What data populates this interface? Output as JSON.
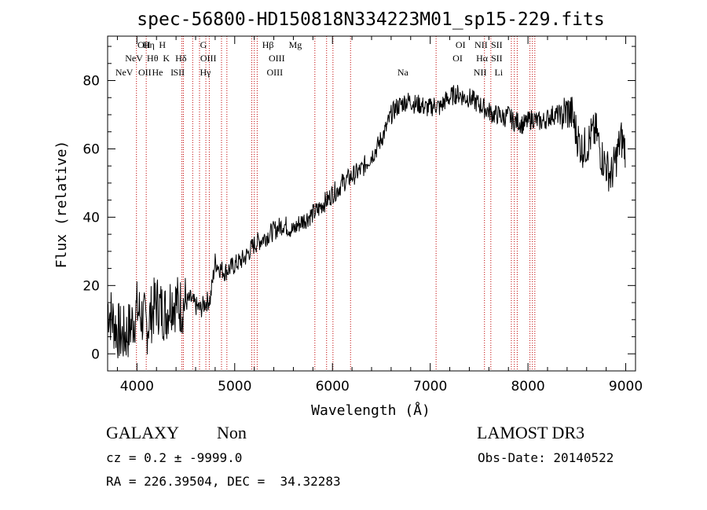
{
  "chart_data": {
    "type": "line",
    "title": "spec-56800-HD150818N334223M01_sp15-229.fits",
    "xlabel": "Wavelength (Å)",
    "ylabel": "Flux (relative)",
    "xlim": [
      3700,
      9100
    ],
    "ylim": [
      -5,
      93
    ],
    "x_ticks": [
      4000,
      5000,
      6000,
      7000,
      8000,
      9000
    ],
    "y_ticks": [
      0,
      20,
      40,
      60,
      80
    ],
    "grid": false,
    "series": [
      {
        "name": "spectrum",
        "x": [
          3700,
          3750,
          3800,
          3850,
          3900,
          3950,
          4000,
          4050,
          4100,
          4150,
          4200,
          4250,
          4300,
          4350,
          4400,
          4450,
          4500,
          4550,
          4600,
          4650,
          4700,
          4750,
          4800,
          4850,
          4900,
          4950,
          5000,
          5050,
          5100,
          5150,
          5200,
          5250,
          5300,
          5350,
          5400,
          5450,
          5500,
          5550,
          5600,
          5650,
          5700,
          5750,
          5800,
          5850,
          5900,
          5950,
          6000,
          6050,
          6100,
          6150,
          6200,
          6250,
          6300,
          6350,
          6400,
          6450,
          6500,
          6550,
          6600,
          6650,
          6700,
          6750,
          6800,
          6850,
          6900,
          6950,
          7000,
          7050,
          7100,
          7150,
          7200,
          7250,
          7300,
          7350,
          7400,
          7450,
          7500,
          7550,
          7600,
          7650,
          7700,
          7750,
          7800,
          7850,
          7900,
          7950,
          8000,
          8050,
          8100,
          8150,
          8200,
          8250,
          8300,
          8350,
          8400,
          8450,
          8500,
          8550,
          8600,
          8650,
          8700,
          8750,
          8800,
          8850,
          8900,
          8950,
          9000
        ],
        "values": [
          14,
          10,
          7,
          5,
          6,
          9,
          13,
          11,
          8,
          12,
          15,
          13,
          12,
          16,
          15,
          14,
          15,
          16,
          14,
          13,
          15,
          16,
          27,
          25,
          24,
          25,
          26,
          27,
          28,
          30,
          32,
          33,
          34,
          35,
          36,
          37,
          38,
          37,
          36,
          38,
          39,
          40,
          41,
          42,
          44,
          45,
          47,
          48,
          50,
          51,
          52,
          53,
          54,
          56,
          58,
          60,
          63,
          66,
          70,
          72,
          73,
          74,
          74,
          73,
          73,
          72,
          72,
          73,
          72,
          74,
          75,
          76,
          76,
          75,
          75,
          74,
          73,
          72,
          71,
          70,
          70,
          69,
          70,
          68,
          68,
          67,
          68,
          69,
          68,
          68,
          69,
          70,
          70,
          70,
          71,
          70,
          64,
          60,
          61,
          64,
          65,
          58,
          55,
          52,
          57,
          63,
          60
        ]
      }
    ],
    "spectral_lines": [
      {
        "label": "NeV",
        "wavelength": 3870,
        "row": 3
      },
      {
        "label": "NeV",
        "wavelength": 3970,
        "row": 2
      },
      {
        "label": "OII",
        "wavelength": 4072,
        "row": 1
      },
      {
        "label": "OII",
        "wavelength": 4080,
        "row": 3
      },
      {
        "label": "Hη",
        "wavelength": 4120,
        "row": 1
      },
      {
        "label": "Hθ",
        "wavelength": 4160,
        "row": 2
      },
      {
        "label": "He",
        "wavelength": 4210,
        "row": 3
      },
      {
        "label": "H",
        "wavelength": 4260,
        "row": 1
      },
      {
        "label": "K",
        "wavelength": 4300,
        "row": 2
      },
      {
        "label": "I",
        "wavelength": 4360,
        "row": 3
      },
      {
        "label": "Hδ",
        "wavelength": 4450,
        "row": 2
      },
      {
        "label": "SII",
        "wavelength": 4430,
        "row": 3
      },
      {
        "label": "G",
        "wavelength": 4680,
        "row": 1
      },
      {
        "label": "OIII",
        "wavelength": 4730,
        "row": 2
      },
      {
        "label": "Hγ",
        "wavelength": 4700,
        "row": 3
      },
      {
        "label": "Hβ",
        "wavelength": 5340,
        "row": 1
      },
      {
        "label": "OIII",
        "wavelength": 5430,
        "row": 2
      },
      {
        "label": "OIII",
        "wavelength": 5410,
        "row": 3
      },
      {
        "label": "Mg",
        "wavelength": 5620,
        "row": 1
      },
      {
        "label": "Na",
        "wavelength": 6720,
        "row": 3
      },
      {
        "label": "OI",
        "wavelength": 7310,
        "row": 1
      },
      {
        "label": "OI",
        "wavelength": 7280,
        "row": 2
      },
      {
        "label": "NII",
        "wavelength": 7520,
        "row": 1
      },
      {
        "label": "Hα",
        "wavelength": 7530,
        "row": 2
      },
      {
        "label": "NII",
        "wavelength": 7510,
        "row": 3
      },
      {
        "label": "SII",
        "wavelength": 7680,
        "row": 1
      },
      {
        "label": "SII",
        "wavelength": 7680,
        "row": 2
      },
      {
        "label": "Li",
        "wavelength": 7700,
        "row": 3
      }
    ],
    "marker_lines_wavelengths": [
      3995,
      4095,
      4460,
      4475,
      4570,
      4640,
      4705,
      4740,
      4865,
      4920,
      5175,
      5200,
      5230,
      5820,
      5940,
      6005,
      6185,
      7060,
      7555,
      7620,
      7830,
      7860,
      7890,
      8020,
      8045,
      8070
    ]
  },
  "info": {
    "object_class": "GALAXY",
    "subclass": "Non",
    "survey": "LAMOST DR3",
    "cz_text": "cz = 0.2 ± -9999.0",
    "obs_date_text": "Obs-Date: 20140522",
    "coords_text": "RA = 226.39504, DEC =  34.32283"
  }
}
